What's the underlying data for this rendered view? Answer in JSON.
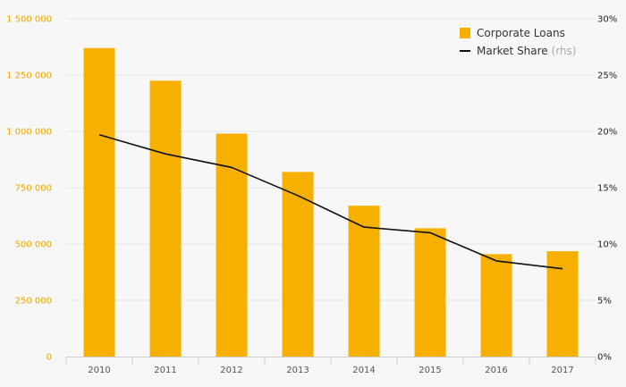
{
  "chart_data": {
    "type": "bar",
    "categories": [
      "2010",
      "2011",
      "2012",
      "2013",
      "2014",
      "2015",
      "2016",
      "2017"
    ],
    "series": [
      {
        "name": "Corporate Loans",
        "type": "bar",
        "axis": "left",
        "values": [
          1370000,
          1225000,
          990000,
          820000,
          670000,
          570000,
          455000,
          468000
        ]
      },
      {
        "name": "Market Share",
        "name_suffix": "(rhs)",
        "type": "line",
        "axis": "right",
        "values": [
          19.7,
          18.0,
          16.8,
          14.3,
          11.5,
          11.0,
          8.5,
          7.8
        ]
      }
    ],
    "y_left": {
      "ylim": [
        0,
        1500000
      ],
      "ticks": [
        0,
        250000,
        500000,
        750000,
        1000000,
        1250000,
        1500000
      ],
      "tick_labels": [
        "0",
        "250 000",
        "500 000",
        "750 000",
        "1 000 000",
        "1 250 000",
        "1 500 000"
      ]
    },
    "y_right": {
      "ylim": [
        0,
        30
      ],
      "ticks": [
        0,
        5,
        10,
        15,
        20,
        25,
        30
      ],
      "tick_labels": [
        "0%",
        "5%",
        "10%",
        "15%",
        "20%",
        "25%",
        "30%"
      ]
    },
    "grid": true,
    "legend_position": "top-right",
    "colors": {
      "bar": "#f8b000",
      "line": "#111111",
      "left_tick_text": "#f0a800",
      "right_tick_text": "#222222",
      "grid": "#e6e6e6",
      "axis": "#cfcfcf",
      "x_tick_text": "#555555"
    }
  },
  "legend": {
    "bar_label": "Corporate Loans",
    "line_label": "Market Share",
    "line_suffix": "(rhs)"
  }
}
